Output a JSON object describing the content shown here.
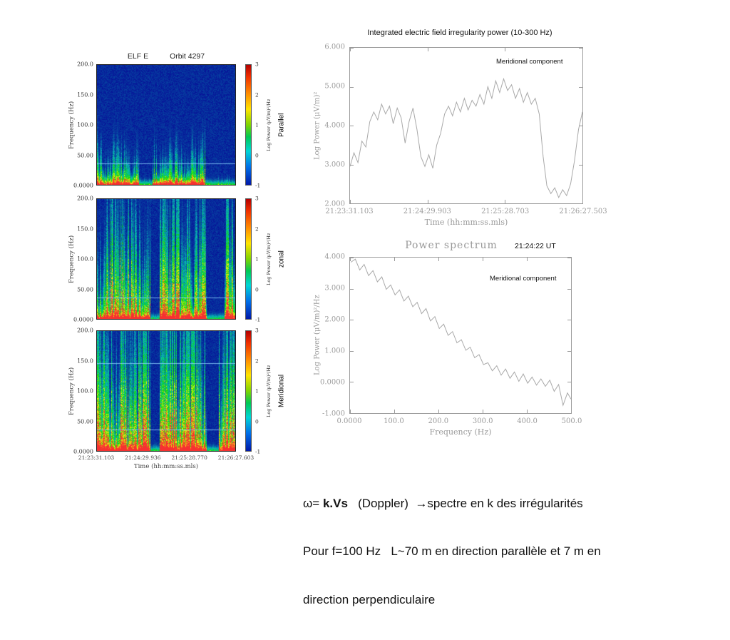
{
  "colors": {
    "background": "#ffffff",
    "axis_gray": "#9a9a9a",
    "line_gray": "#a9a9a9",
    "text_black": "#1a1a1a"
  },
  "spectrograms": {
    "title_left": "ELF E",
    "title_right": "Orbit 4297",
    "ylabel": "Frequency (Hz)",
    "yticks": [
      "200.0",
      "150.0",
      "100.0",
      "50.00",
      "0.0000"
    ],
    "xlabel": "Time (hh:mm:ss.mls)",
    "xticks": [
      "21:23:31.103",
      "21:24:29.936",
      "21:25:28.770",
      "21:26:27.603"
    ],
    "colorbar_label": "Log Power (μV/m)²/Hz",
    "colorbar_ticks": [
      "3",
      "2",
      "1",
      "0",
      "-1"
    ],
    "panels": [
      {
        "label": "Parallel",
        "seed": 11,
        "intensity": 0.62,
        "burst_height": 0.24,
        "base_red": 0.95,
        "gap_level": 0.3,
        "gaps": [
          [
            0.3,
            0.4
          ],
          [
            0.78,
            1.0
          ]
        ],
        "hlines": [
          0.18
        ]
      },
      {
        "label": "zonal",
        "seed": 27,
        "intensity": 1.0,
        "burst_height": 0.52,
        "base_red": 1.0,
        "gap_level": 0.1,
        "gaps": [
          [
            0.385,
            0.45
          ],
          [
            0.79,
            0.92
          ]
        ],
        "hlines": [
          0.18
        ]
      },
      {
        "label": "Meridional",
        "seed": 41,
        "intensity": 1.05,
        "burst_height": 0.58,
        "base_red": 1.0,
        "gap_level": 0.1,
        "gaps": [
          [
            0.385,
            0.45
          ],
          [
            0.79,
            0.88
          ]
        ],
        "hlines": [
          0.18,
          0.73
        ]
      }
    ]
  },
  "caption": {
    "line1_pre": "ω= ",
    "line1_bold": "k.Vs",
    "line1_rest": "   (Doppler)  →spectre en k des irrégularités",
    "line2": "Pour f=100 Hz   L~70 m en direction parallèle et 7 m en",
    "line3": "direction perpendiculaire"
  },
  "chart_data": [
    {
      "type": "heatmap",
      "id": "spectrogram-parallel",
      "title": "ELF E Orbit 4297 — Parallel component",
      "xlabel": "Time (hh:mm:ss.mls)",
      "ylabel": "Frequency (Hz)",
      "x_ticks": [
        "21:23:31.103",
        "21:24:29.936",
        "21:25:28.770",
        "21:26:27.603"
      ],
      "ylim": [
        0,
        210
      ],
      "z_label": "Log Power (μV/m)²/Hz",
      "zlim": [
        -1,
        3
      ],
      "description": "Intense broadband power below ~40 Hz with intermittent bursts reaching ~100-150 Hz; quiet blue intervals near mid-pass and end; narrow interference line near 40 Hz"
    },
    {
      "type": "heatmap",
      "id": "spectrogram-zonal",
      "title": "ELF E Orbit 4297 — zonal component",
      "xlabel": "Time (hh:mm:ss.mls)",
      "ylabel": "Frequency (Hz)",
      "x_ticks": [
        "21:23:31.103",
        "21:24:29.936",
        "21:25:28.770",
        "21:26:27.603"
      ],
      "ylim": [
        0,
        210
      ],
      "z_label": "Log Power (μV/m)²/Hz",
      "zlim": [
        -1,
        3
      ],
      "description": "Strong turbulence with red/yellow power at low frequency and green bursts extending to ~200 Hz; dark quiet gaps near 21:24:55 and 21:26:05"
    },
    {
      "type": "heatmap",
      "id": "spectrogram-meridional",
      "title": "ELF E Orbit 4297 — Meridional component",
      "xlabel": "Time (hh:mm:ss.mls)",
      "ylabel": "Frequency (Hz)",
      "x_ticks": [
        "21:23:31.103",
        "21:24:29.936",
        "21:25:28.770",
        "21:26:27.603"
      ],
      "ylim": [
        0,
        210
      ],
      "z_label": "Log Power (μV/m)²/Hz",
      "zlim": [
        -1,
        3
      ],
      "description": "Strongest component; broadband bursts to ~200 Hz, quiet gaps near 21:24:55 and 21:26:00; interference lines near 40 and 150 Hz"
    },
    {
      "type": "line",
      "id": "integrated-power",
      "title": "Integrated electric field irregularity power (10-300 Hz)",
      "series_label": "Meridional component",
      "xlabel": "Time (hh:mm:ss.mls)",
      "ylabel": "Log Power (μV/m)²",
      "x_ticks": [
        "21:23:31.103",
        "21:24:29.903",
        "21:25:28.703",
        "21:26:27.503"
      ],
      "y_ticks": [
        "6.000",
        "5.000",
        "4.000",
        "3.000",
        "2.000"
      ],
      "xlim": [
        0,
        1
      ],
      "ylim": [
        2,
        6
      ],
      "points": [
        [
          0.0,
          2.95
        ],
        [
          0.017,
          3.3
        ],
        [
          0.034,
          3.05
        ],
        [
          0.051,
          3.6
        ],
        [
          0.068,
          3.45
        ],
        [
          0.085,
          4.1
        ],
        [
          0.102,
          4.35
        ],
        [
          0.119,
          4.15
        ],
        [
          0.136,
          4.55
        ],
        [
          0.153,
          4.3
        ],
        [
          0.17,
          4.5
        ],
        [
          0.186,
          4.05
        ],
        [
          0.203,
          4.45
        ],
        [
          0.22,
          4.2
        ],
        [
          0.237,
          3.55
        ],
        [
          0.254,
          4.1
        ],
        [
          0.271,
          4.45
        ],
        [
          0.288,
          3.9
        ],
        [
          0.305,
          3.2
        ],
        [
          0.322,
          2.95
        ],
        [
          0.339,
          3.25
        ],
        [
          0.356,
          2.9
        ],
        [
          0.373,
          3.5
        ],
        [
          0.39,
          3.8
        ],
        [
          0.407,
          4.3
        ],
        [
          0.424,
          4.5
        ],
        [
          0.441,
          4.25
        ],
        [
          0.458,
          4.6
        ],
        [
          0.475,
          4.35
        ],
        [
          0.492,
          4.7
        ],
        [
          0.508,
          4.4
        ],
        [
          0.525,
          4.65
        ],
        [
          0.542,
          4.5
        ],
        [
          0.559,
          4.8
        ],
        [
          0.576,
          4.55
        ],
        [
          0.593,
          5.0
        ],
        [
          0.61,
          4.7
        ],
        [
          0.627,
          5.15
        ],
        [
          0.644,
          4.85
        ],
        [
          0.661,
          5.2
        ],
        [
          0.678,
          4.9
        ],
        [
          0.695,
          5.05
        ],
        [
          0.712,
          4.7
        ],
        [
          0.729,
          4.95
        ],
        [
          0.746,
          4.6
        ],
        [
          0.763,
          4.85
        ],
        [
          0.78,
          4.55
        ],
        [
          0.797,
          4.7
        ],
        [
          0.814,
          4.3
        ],
        [
          0.831,
          3.2
        ],
        [
          0.847,
          2.45
        ],
        [
          0.864,
          2.25
        ],
        [
          0.881,
          2.4
        ],
        [
          0.898,
          2.15
        ],
        [
          0.915,
          2.35
        ],
        [
          0.932,
          2.2
        ],
        [
          0.949,
          2.5
        ],
        [
          0.966,
          3.1
        ],
        [
          0.983,
          3.9
        ],
        [
          1.0,
          4.35
        ]
      ]
    },
    {
      "type": "line",
      "id": "power-spectrum",
      "title": "Power spectrum",
      "timestamp": "21:24:22 UT",
      "series_label": "Meridional component",
      "xlabel": "Frequency (Hz)",
      "ylabel": "Log Power (μV/m)²/Hz",
      "x_ticks": [
        "0.0000",
        "100.0",
        "200.0",
        "300.0",
        "400.0",
        "500.0"
      ],
      "y_ticks": [
        "4.000",
        "3.000",
        "2.000",
        "1.000",
        "0.0000",
        "-1.000"
      ],
      "xlim": [
        0,
        500
      ],
      "ylim": [
        -1,
        4
      ],
      "points": [
        [
          2,
          3.85
        ],
        [
          12,
          3.95
        ],
        [
          22,
          3.6
        ],
        [
          32,
          3.78
        ],
        [
          42,
          3.42
        ],
        [
          52,
          3.58
        ],
        [
          62,
          3.22
        ],
        [
          72,
          3.38
        ],
        [
          82,
          2.98
        ],
        [
          92,
          3.12
        ],
        [
          102,
          2.8
        ],
        [
          112,
          2.96
        ],
        [
          122,
          2.6
        ],
        [
          132,
          2.76
        ],
        [
          142,
          2.42
        ],
        [
          152,
          2.56
        ],
        [
          162,
          2.2
        ],
        [
          172,
          2.36
        ],
        [
          182,
          1.96
        ],
        [
          192,
          2.1
        ],
        [
          202,
          1.72
        ],
        [
          212,
          1.86
        ],
        [
          222,
          1.5
        ],
        [
          232,
          1.62
        ],
        [
          242,
          1.26
        ],
        [
          252,
          1.36
        ],
        [
          262,
          1.02
        ],
        [
          272,
          1.12
        ],
        [
          282,
          0.78
        ],
        [
          292,
          0.88
        ],
        [
          302,
          0.56
        ],
        [
          312,
          0.62
        ],
        [
          322,
          0.36
        ],
        [
          332,
          0.52
        ],
        [
          342,
          0.22
        ],
        [
          352,
          0.42
        ],
        [
          362,
          0.12
        ],
        [
          372,
          0.32
        ],
        [
          382,
          0.02
        ],
        [
          392,
          0.26
        ],
        [
          402,
          -0.04
        ],
        [
          412,
          0.16
        ],
        [
          422,
          -0.1
        ],
        [
          432,
          0.1
        ],
        [
          442,
          -0.14
        ],
        [
          452,
          0.06
        ],
        [
          462,
          -0.3
        ],
        [
          472,
          -0.08
        ],
        [
          482,
          -0.75
        ],
        [
          492,
          -0.35
        ],
        [
          500,
          -0.55
        ]
      ]
    }
  ]
}
